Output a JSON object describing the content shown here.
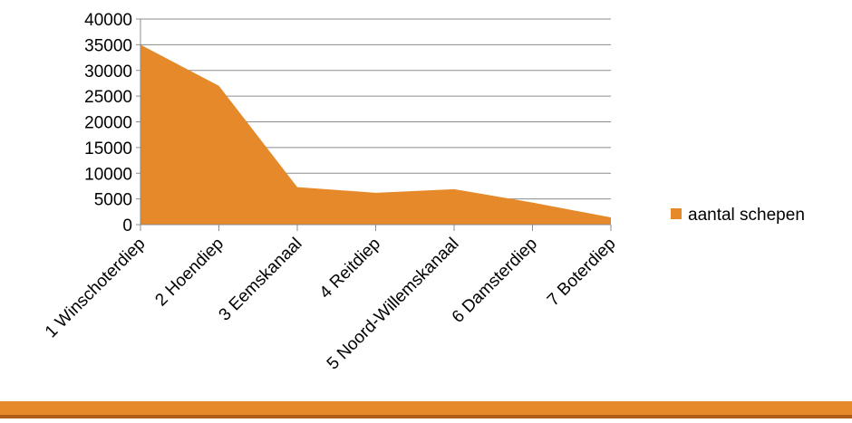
{
  "chart_data": {
    "type": "area",
    "categories": [
      "1 Winschoterdiep",
      "2 Hoendiep",
      "3 Eemskanaal",
      "4 Reitdiep",
      "5 Noord-Willemskanaal",
      "6 Damsterdiep",
      "7 Boterdiep"
    ],
    "series": [
      {
        "name": "aantal schepen",
        "values": [
          35000,
          27000,
          7300,
          6200,
          6900,
          4300,
          1400
        ],
        "color": "#e5892a"
      }
    ],
    "yticks": [
      "0",
      "5000",
      "10000",
      "15000",
      "20000",
      "25000",
      "30000",
      "35000",
      "40000"
    ],
    "ylim": [
      0,
      40000
    ],
    "grid": true,
    "legend_position": "right"
  }
}
